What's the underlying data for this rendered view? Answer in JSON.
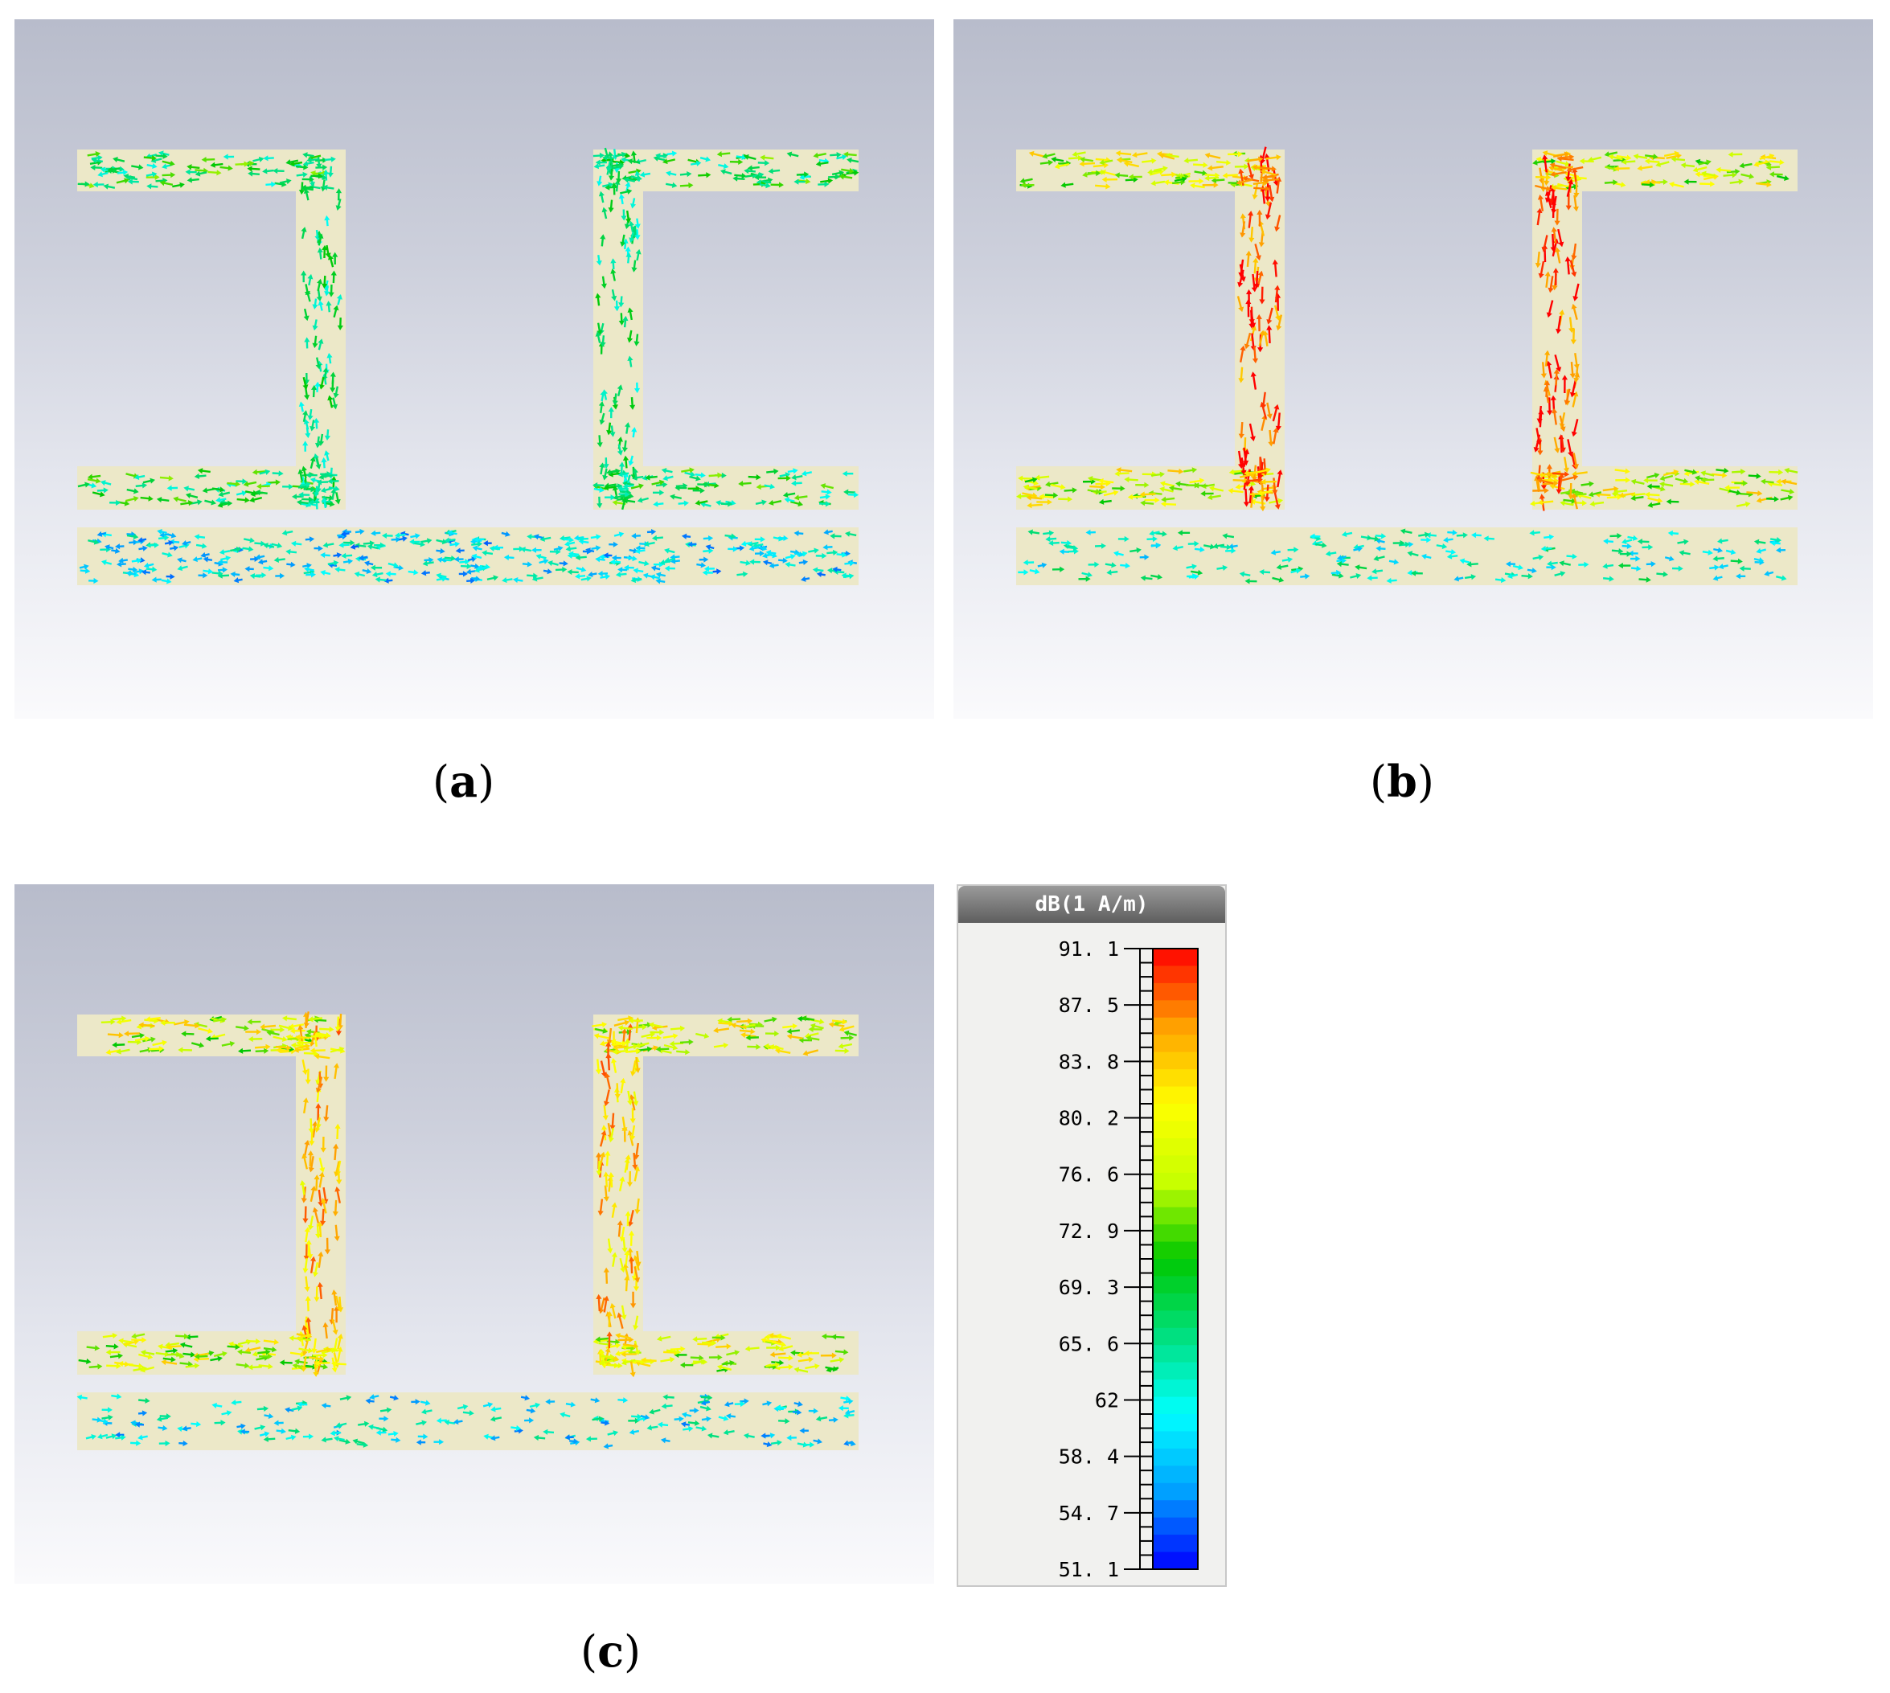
{
  "panels": [
    {
      "id": "a",
      "caption_letter": "a",
      "intensity": [
        0.42,
        0.38,
        0.4,
        0.22
      ]
    },
    {
      "id": "b",
      "caption_letter": "b",
      "intensity": [
        0.66,
        0.94,
        0.86,
        0.3
      ]
    },
    {
      "id": "c",
      "caption_letter": "c",
      "intensity": [
        0.66,
        0.82,
        0.74,
        0.24
      ]
    }
  ],
  "legend": {
    "unit": "dB(1 A/m)",
    "ticks": [
      "91. 1",
      "87. 5",
      "83. 8",
      "80. 2",
      "76. 6",
      "72. 9",
      "69. 3",
      "65. 6",
      "62",
      "58. 4",
      "54. 7",
      "51. 1"
    ],
    "min": 51.1,
    "max": 91.1,
    "colors": [
      "#0000ff",
      "#00a0ff",
      "#00ffff",
      "#00e080",
      "#00c800",
      "#c8ff00",
      "#ffff00",
      "#ffa000",
      "#ff0000"
    ]
  }
}
